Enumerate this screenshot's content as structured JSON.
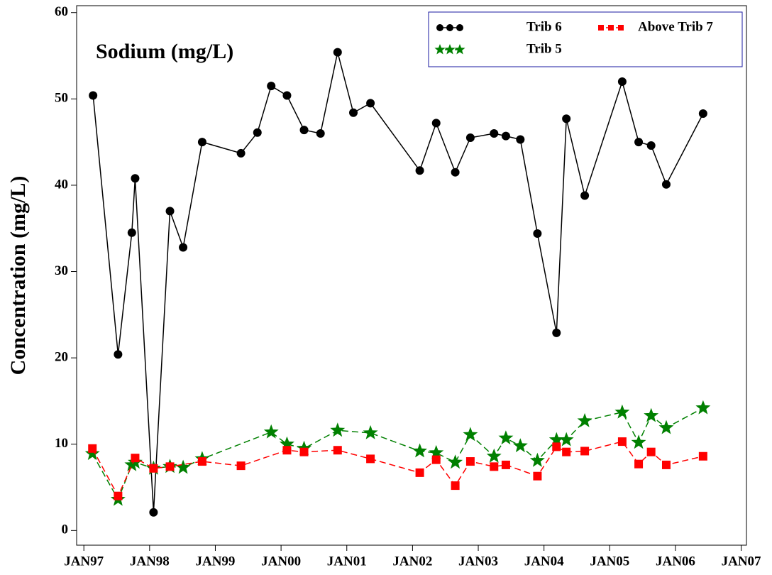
{
  "chart_data": {
    "type": "line",
    "title": "Sodium (mg/L)",
    "y_label": "Concentration (mg/L)",
    "xlim": [
      1996.89,
      2007.08
    ],
    "ylim": [
      -1.7,
      60.8
    ],
    "xticks": [
      {
        "value": 1997,
        "label": "JAN97"
      },
      {
        "value": 1998,
        "label": "JAN98"
      },
      {
        "value": 1999,
        "label": "JAN99"
      },
      {
        "value": 2000,
        "label": "JAN00"
      },
      {
        "value": 2001,
        "label": "JAN01"
      },
      {
        "value": 2002,
        "label": "JAN02"
      },
      {
        "value": 2003,
        "label": "JAN03"
      },
      {
        "value": 2004,
        "label": "JAN04"
      },
      {
        "value": 2005,
        "label": "JAN05"
      },
      {
        "value": 2006,
        "label": "JAN06"
      },
      {
        "value": 2007,
        "label": "JAN07"
      }
    ],
    "yticks": [
      0,
      10,
      20,
      30,
      40,
      50,
      60
    ],
    "grid": false,
    "legend_position": "upper right",
    "series": [
      {
        "name": "Trib 6",
        "color": "#000000",
        "marker": "circle",
        "dashed": false,
        "x": [
          1997.14,
          1997.52,
          1997.73,
          1997.78,
          1998.06,
          1998.31,
          1998.51,
          1998.8,
          1999.39,
          1999.64,
          1999.85,
          2000.09,
          2000.35,
          2000.6,
          2000.86,
          2001.1,
          2001.36,
          2002.11,
          2002.36,
          2002.65,
          2002.88,
          2003.24,
          2003.42,
          2003.64,
          2003.9,
          2004.19,
          2004.34,
          2004.62,
          2005.19,
          2005.44,
          2005.63,
          2005.86,
          2006.42
        ],
        "values": [
          50.4,
          20.4,
          34.5,
          40.8,
          2.1,
          37.0,
          32.8,
          45.0,
          43.7,
          46.1,
          51.5,
          50.4,
          46.4,
          46.0,
          55.4,
          48.4,
          49.5,
          41.7,
          47.2,
          41.5,
          45.5,
          46.0,
          45.7,
          45.3,
          34.4,
          22.9,
          47.7,
          38.8,
          52.0,
          45.0,
          44.6,
          40.1,
          48.3
        ]
      },
      {
        "name": "Trib 5",
        "color": "#008000",
        "marker": "star",
        "dashed": true,
        "x": [
          1997.13,
          1997.52,
          1997.73,
          1997.78,
          1998.06,
          1998.31,
          1998.51,
          1998.8,
          1999.85,
          2000.09,
          2000.35,
          2000.86,
          2001.36,
          2002.11,
          2002.36,
          2002.65,
          2002.88,
          2003.24,
          2003.42,
          2003.64,
          2003.9,
          2004.19,
          2004.34,
          2004.62,
          2005.19,
          2005.44,
          2005.63,
          2005.86,
          2006.42
        ],
        "values": [
          8.9,
          3.6,
          7.6,
          7.9,
          7.2,
          7.4,
          7.3,
          8.3,
          11.4,
          10.0,
          9.5,
          11.6,
          11.3,
          9.2,
          9.0,
          7.9,
          11.1,
          8.6,
          10.7,
          9.8,
          8.1,
          10.5,
          10.5,
          12.7,
          13.7,
          10.2,
          13.3,
          11.9,
          14.2
        ]
      },
      {
        "name": "Above Trib 7",
        "color": "#ff0000",
        "marker": "square",
        "dashed": true,
        "x": [
          1997.13,
          1997.52,
          1997.78,
          1998.06,
          1998.31,
          1998.8,
          1999.39,
          2000.09,
          2000.35,
          2000.86,
          2001.36,
          2002.11,
          2002.36,
          2002.65,
          2002.88,
          2003.24,
          2003.42,
          2003.9,
          2004.19,
          2004.34,
          2004.62,
          2005.19,
          2005.44,
          2005.63,
          2005.86,
          2006.42
        ],
        "values": [
          9.5,
          4.0,
          8.4,
          7.2,
          7.4,
          8.0,
          7.5,
          9.3,
          9.1,
          9.3,
          8.3,
          6.7,
          8.2,
          5.2,
          8.0,
          7.4,
          7.6,
          6.3,
          9.7,
          9.1,
          9.2,
          10.3,
          7.7,
          9.1,
          7.6,
          8.6
        ]
      }
    ]
  }
}
